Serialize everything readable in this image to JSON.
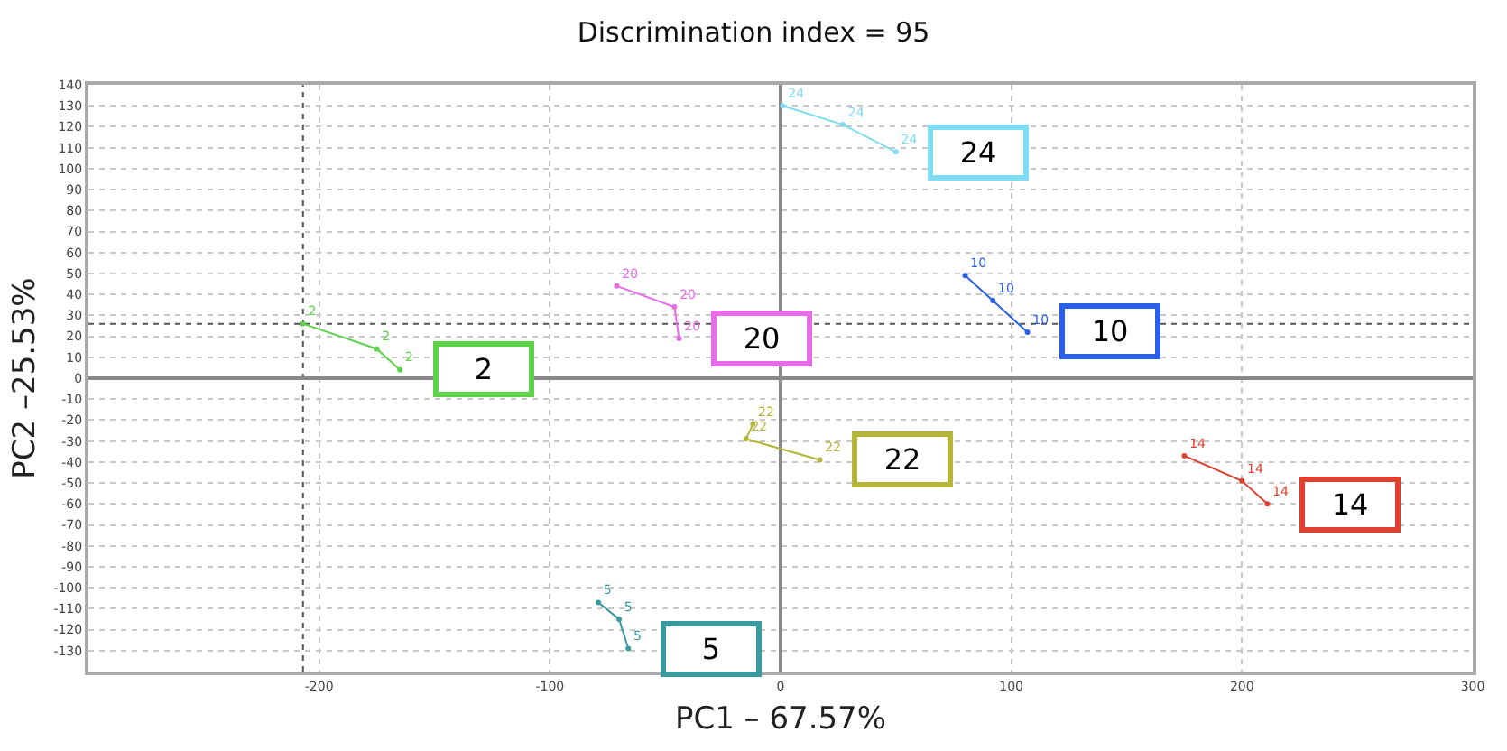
{
  "chart_data": {
    "type": "line",
    "title": "Discrimination index = 95",
    "xlabel": "PC1 – 67.57%",
    "ylabel": "PC2 –25.53%",
    "xlim": [
      -300,
      300
    ],
    "xticks": [
      -200,
      -100,
      0,
      100,
      200,
      300
    ],
    "ylim": [
      -140,
      140
    ],
    "yticks": [
      -130,
      -120,
      -110,
      -100,
      -90,
      -80,
      -70,
      -60,
      -50,
      -40,
      -30,
      -20,
      -10,
      0,
      10,
      20,
      30,
      40,
      50,
      60,
      70,
      80,
      90,
      100,
      110,
      120,
      130,
      140
    ],
    "grid": true,
    "legend": false,
    "marker": "circle",
    "line_style": "solid",
    "series": [
      {
        "name": "2",
        "color": "#5dd34a",
        "x": [
          -207,
          -175,
          -165
        ],
        "values": [
          26,
          14,
          4
        ]
      },
      {
        "name": "20",
        "color": "#e86be8",
        "x": [
          -71,
          -46,
          -44
        ],
        "values": [
          44,
          34,
          19
        ]
      },
      {
        "name": "24",
        "color": "#7fdcf2",
        "x": [
          1,
          27,
          50
        ],
        "values": [
          130,
          121,
          108
        ]
      },
      {
        "name": "10",
        "color": "#2a5fe8",
        "x": [
          80,
          92,
          107
        ],
        "values": [
          49,
          37,
          22
        ]
      },
      {
        "name": "22",
        "color": "#b5b53a",
        "x": [
          -12,
          -15,
          17
        ],
        "values": [
          -22,
          -29,
          -39
        ]
      },
      {
        "name": "14",
        "color": "#e04030",
        "x": [
          175,
          200,
          211
        ],
        "values": [
          -37,
          -49,
          -60
        ]
      },
      {
        "name": "5",
        "color": "#3a9aa0",
        "x": [
          -79,
          -70,
          -66
        ],
        "values": [
          -107,
          -115,
          -129
        ]
      }
    ],
    "ref_lines": [
      {
        "axis": "x",
        "value": -207,
        "color": "#555555",
        "line_style": "dotted"
      },
      {
        "axis": "y",
        "value": 26,
        "color": "#555555",
        "line_style": "dotted"
      }
    ]
  }
}
